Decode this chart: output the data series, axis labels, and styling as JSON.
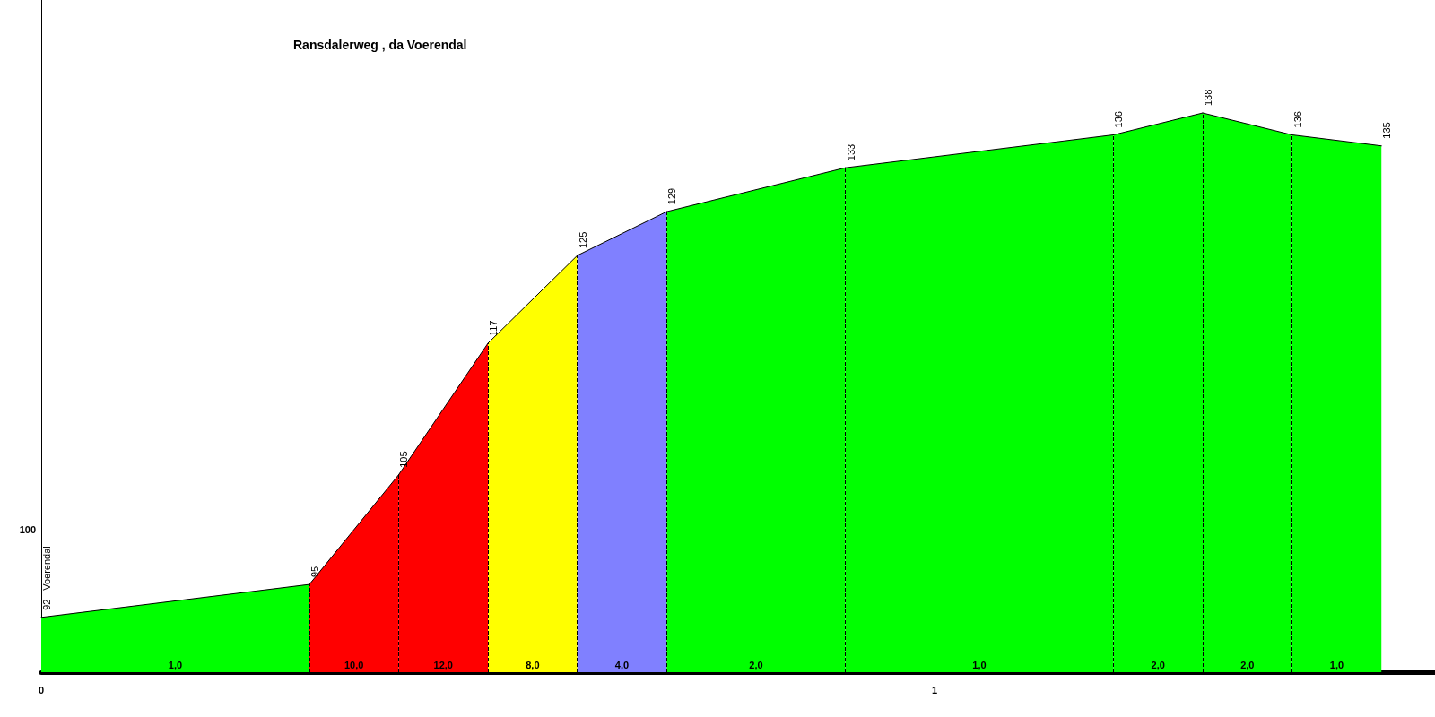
{
  "chart_data": {
    "type": "area",
    "title": "Ransdalerweg , da Voerendal",
    "series": [
      {
        "color": "#00ff00",
        "x": [
          0,
          0.3
        ],
        "values": [
          92,
          95
        ],
        "value_labels": [
          "92 - Voerendal",
          "95"
        ]
      },
      {
        "color": "#ff0000",
        "x": [
          0.3,
          0.4
        ],
        "values": [
          95,
          105
        ],
        "value_labels": [
          null,
          "105"
        ]
      },
      {
        "color": "#ff0000",
        "x": [
          0.4,
          0.5
        ],
        "values": [
          105,
          117
        ],
        "value_labels": [
          null,
          "117"
        ]
      },
      {
        "color": "#ffff00",
        "x": [
          0.5,
          0.6
        ],
        "values": [
          117,
          125
        ],
        "value_labels": [
          null,
          "125"
        ]
      },
      {
        "color": "#8080ff",
        "x": [
          0.6,
          0.7
        ],
        "values": [
          125,
          129
        ],
        "value_labels": [
          null,
          "129"
        ]
      },
      {
        "color": "#00ff00",
        "x": [
          0.7,
          0.9
        ],
        "values": [
          129,
          133
        ],
        "value_labels": [
          null,
          "133"
        ]
      },
      {
        "color": "#00ff00",
        "x": [
          0.9,
          1.2
        ],
        "values": [
          133,
          136
        ],
        "value_labels": [
          null,
          "136"
        ]
      },
      {
        "color": "#00ff00",
        "x": [
          1.2,
          1.3
        ],
        "values": [
          136,
          138
        ],
        "value_labels": [
          null,
          "138"
        ]
      },
      {
        "color": "#00ff00",
        "x": [
          1.3,
          1.4
        ],
        "values": [
          138,
          136
        ],
        "value_labels": [
          null,
          "136"
        ]
      },
      {
        "color": "#00ff00",
        "x": [
          1.4,
          1.5
        ],
        "values": [
          136,
          135
        ],
        "value_labels": [
          null,
          "135"
        ]
      }
    ],
    "xlim": [
      0,
      1.56
    ],
    "xticks": [
      0,
      1
    ],
    "ylim": [
      87,
      148.3
    ],
    "marker": "none",
    "ref_lines": [
      {
        "axis": "x",
        "value": 0.3,
        "line_style": "dashed",
        "color": "#000000"
      },
      {
        "axis": "x",
        "value": 0.4,
        "line_style": "dashed",
        "color": "#000000"
      },
      {
        "axis": "x",
        "value": 0.5,
        "line_style": "dashed",
        "color": "#000000"
      },
      {
        "axis": "x",
        "value": 0.6,
        "line_style": "dashed",
        "color": "#000000"
      },
      {
        "axis": "x",
        "value": 0.7,
        "line_style": "dashed",
        "color": "#000000"
      },
      {
        "axis": "x",
        "value": 0.9,
        "line_style": "dashed",
        "color": "#000000"
      },
      {
        "axis": "x",
        "value": 1.2,
        "line_style": "dashed",
        "color": "#000000"
      },
      {
        "axis": "x",
        "value": 1.3,
        "line_style": "dashed",
        "color": "#000000"
      },
      {
        "axis": "x",
        "value": 1.4,
        "line_style": "dashed",
        "color": "#000000"
      }
    ],
    "annotations": [
      "100",
      {
        "text": "1,0",
        "x": 0.15,
        "y": 87
      },
      {
        "text": "10,0",
        "x": 0.35,
        "y": 87
      },
      {
        "text": "12,0",
        "x": 0.45,
        "y": 87
      },
      {
        "text": "8,0",
        "x": 0.55,
        "y": 87
      },
      {
        "text": "4,0",
        "x": 0.65,
        "y": 87
      },
      {
        "text": "2,0",
        "x": 0.8,
        "y": 87
      },
      {
        "text": "1,0",
        "x": 1.05,
        "y": 87
      },
      {
        "text": "2,0",
        "x": 1.25,
        "y": 87
      },
      {
        "text": "2,0",
        "x": 1.35,
        "y": 87
      },
      {
        "text": "1,0",
        "x": 1.45,
        "y": 87
      }
    ]
  }
}
